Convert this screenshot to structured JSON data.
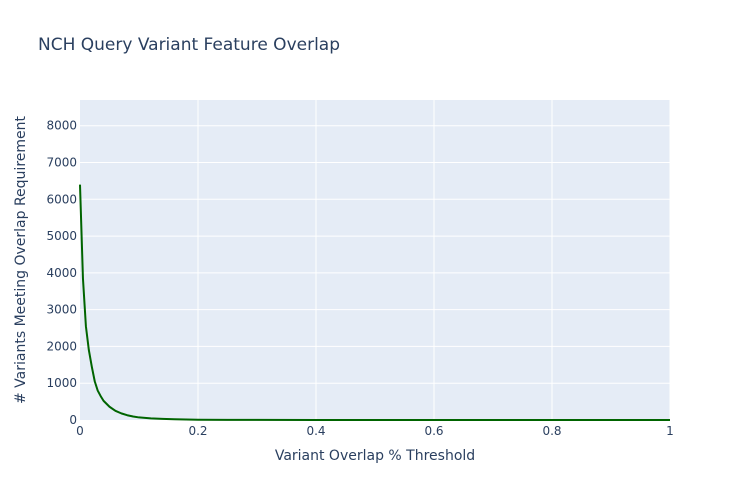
{
  "chart_data": {
    "type": "line",
    "title": "NCH Query Variant Feature Overlap",
    "xlabel": "Variant Overlap % Threshold",
    "ylabel": "# Variants Meeting Overlap Requirement",
    "xlim": [
      0,
      1
    ],
    "ylim": [
      0,
      8700
    ],
    "x_ticks": [
      0,
      0.2,
      0.4,
      0.6,
      0.8,
      1
    ],
    "x_tick_labels": [
      "0",
      "0.2",
      "0.4",
      "0.6",
      "0.8",
      "1"
    ],
    "y_ticks": [
      0,
      1000,
      2000,
      3000,
      4000,
      5000,
      6000,
      7000,
      8000
    ],
    "y_tick_labels": [
      "0",
      "1000",
      "2000",
      "3000",
      "4000",
      "5000",
      "6000",
      "7000",
      "8000"
    ],
    "grid": true,
    "legend": "none",
    "series": [
      {
        "color": "#006400",
        "x": [
          0,
          0.005,
          0.01,
          0.015,
          0.02,
          0.025,
          0.03,
          0.035,
          0.04,
          0.05,
          0.06,
          0.07,
          0.08,
          0.09,
          0.1,
          0.12,
          0.14,
          0.16,
          0.18,
          0.2,
          0.25,
          0.3,
          0.4,
          0.5,
          0.6,
          0.7,
          0.8,
          0.9,
          1.0
        ],
        "y": [
          6400,
          3850,
          2550,
          1900,
          1450,
          1050,
          800,
          650,
          520,
          360,
          250,
          180,
          130,
          95,
          70,
          45,
          30,
          20,
          12,
          8,
          4,
          2,
          1,
          0,
          0,
          0,
          0,
          0,
          0
        ]
      }
    ]
  },
  "colors": {
    "plot_background": "#e5ecf6",
    "grid": "#ffffff",
    "text": "#2a3f5f",
    "line": "#006400"
  }
}
